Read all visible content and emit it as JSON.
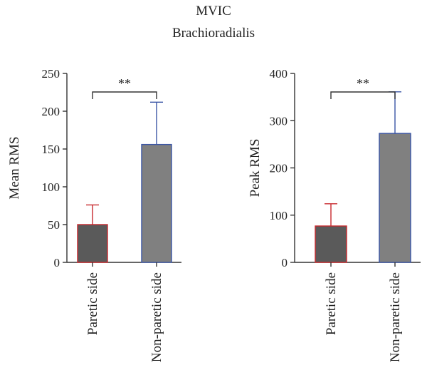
{
  "figure": {
    "title": "MVIC",
    "subtitle": "Brachioradialis"
  },
  "chart_data": [
    {
      "type": "bar",
      "ylabel": "Mean RMS",
      "xlabel": "",
      "categories": [
        "Paretic side",
        "Non-paretic side"
      ],
      "values": [
        50,
        156
      ],
      "error": [
        26,
        56
      ],
      "ylim": [
        0,
        250
      ],
      "yticks": [
        0,
        50,
        100,
        150,
        200,
        250
      ],
      "significance": "**",
      "grid": false,
      "bar_fill": [
        "#5a5a5a",
        "#808080"
      ],
      "bar_edge": [
        "#c8282d",
        "#3a55a5"
      ]
    },
    {
      "type": "bar",
      "ylabel": "Peak RMS",
      "xlabel": "",
      "categories": [
        "Paretic side",
        "Non-paretic side"
      ],
      "values": [
        77,
        273
      ],
      "error": [
        47,
        88
      ],
      "ylim": [
        0,
        400
      ],
      "yticks": [
        0,
        100,
        200,
        300,
        400
      ],
      "significance": "**",
      "grid": false,
      "bar_fill": [
        "#5a5a5a",
        "#808080"
      ],
      "bar_edge": [
        "#c8282d",
        "#3a55a5"
      ]
    }
  ]
}
